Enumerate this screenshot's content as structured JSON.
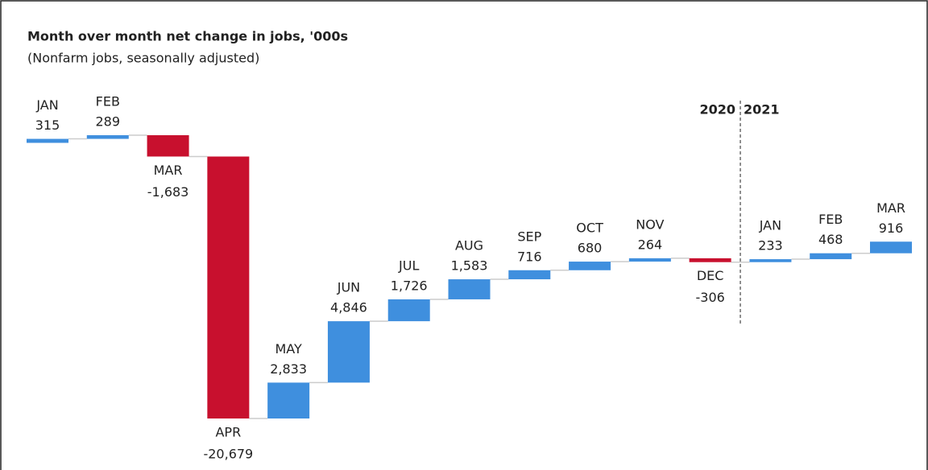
{
  "chart_data": {
    "type": "waterfall",
    "title": "Month over month net change in jobs, '000s",
    "subtitle": "(Nonfarm jobs, seasonally adjusted)",
    "categories": [
      "JAN",
      "FEB",
      "MAR",
      "APR",
      "MAY",
      "JUN",
      "JUL",
      "AUG",
      "SEP",
      "OCT",
      "NOV",
      "DEC",
      "JAN",
      "FEB",
      "MAR"
    ],
    "values": [
      315,
      289,
      -1683,
      -20679,
      2833,
      4846,
      1726,
      1583,
      716,
      680,
      264,
      -306,
      233,
      468,
      916
    ],
    "value_labels": [
      "315",
      "289",
      "-1,683",
      "-20,679",
      "2,833",
      "4,846",
      "1,726",
      "1,583",
      "716",
      "680",
      "264",
      "-306",
      "233",
      "468",
      "916"
    ],
    "increase_color": "#3f8fde",
    "decrease_color": "#c8102e",
    "year_labels": [
      "2020",
      "2021"
    ],
    "divider_index": 12
  }
}
